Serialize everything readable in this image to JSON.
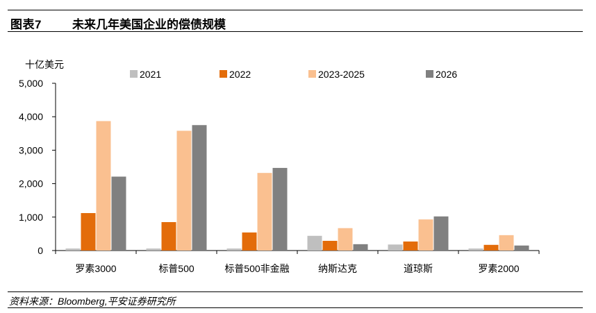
{
  "figure": {
    "label": "图表7",
    "title": "未来几年美国企业的偿债规模",
    "source": "资料来源：Bloomberg,平安证券研究所"
  },
  "chart_data": {
    "type": "bar",
    "unit_label": "十亿美元",
    "categories": [
      "罗素3000",
      "标普500",
      "标普500非金融",
      "纳斯达克",
      "道琼斯",
      "罗素2000"
    ],
    "series": [
      {
        "name": "2021",
        "color": "#bfbfbf",
        "values": [
          60,
          60,
          60,
          440,
          180,
          60
        ]
      },
      {
        "name": "2022",
        "color": "#e36c0a",
        "values": [
          1120,
          850,
          540,
          290,
          270,
          170
        ]
      },
      {
        "name": "2023-2025",
        "color": "#fac090",
        "values": [
          3870,
          3580,
          2320,
          670,
          930,
          460
        ]
      },
      {
        "name": "2026",
        "color": "#808080",
        "values": [
          2210,
          3750,
          2470,
          190,
          1020,
          150
        ]
      }
    ],
    "ylim": [
      0,
      5000
    ],
    "yticks": [
      0,
      1000,
      2000,
      3000,
      4000,
      5000
    ],
    "ytick_labels": [
      "0",
      "1,000",
      "2,000",
      "3,000",
      "4,000",
      "5,000"
    ],
    "legend_position": "top",
    "grid": false
  }
}
